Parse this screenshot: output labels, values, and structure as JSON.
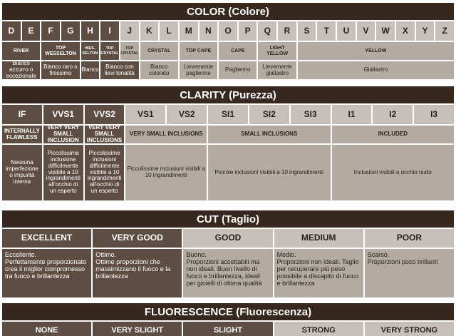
{
  "palette": {
    "title_bg": "#36281e",
    "dark_cell_bg": "#5e4d42",
    "light_cell_bg": "#c7bfb9",
    "tan_cell_bg": "#b3aaa2",
    "text_on_dark": "#ffffff",
    "text_on_light": "#262220"
  },
  "color_section": {
    "title": "COLOR (Colore)",
    "letters": [
      {
        "label": "D",
        "dark": true
      },
      {
        "label": "E",
        "dark": true
      },
      {
        "label": "F",
        "dark": true
      },
      {
        "label": "G",
        "dark": true
      },
      {
        "label": "H",
        "dark": true
      },
      {
        "label": "I",
        "dark": true
      },
      {
        "label": "J"
      },
      {
        "label": "K"
      },
      {
        "label": "L"
      },
      {
        "label": "M"
      },
      {
        "label": "N"
      },
      {
        "label": "O"
      },
      {
        "label": "P"
      },
      {
        "label": "Q"
      },
      {
        "label": "R"
      },
      {
        "label": "S"
      },
      {
        "label": "T"
      },
      {
        "label": "U"
      },
      {
        "label": "V"
      },
      {
        "label": "W"
      },
      {
        "label": "X"
      },
      {
        "label": "Y"
      },
      {
        "label": "Z"
      }
    ],
    "categories": [
      {
        "label": "RIVER",
        "span": 2,
        "dark": true
      },
      {
        "label": "TOP WESSELTON",
        "span": 2,
        "dark": true
      },
      {
        "label": "WES- SELTON",
        "span": 1,
        "dark": true,
        "small": true
      },
      {
        "label": "TOP CRYSTAL",
        "span": 1,
        "dark": true,
        "small": true
      },
      {
        "label": "TOP CRYSTAL",
        "span": 1,
        "small": true
      },
      {
        "label": "CRYSTAL",
        "span": 2
      },
      {
        "label": "TOP CAPE",
        "span": 2
      },
      {
        "label": "CAPE",
        "span": 2
      },
      {
        "label": "LIGHT YELLOW",
        "span": 2
      },
      {
        "label": "YELLOW",
        "span": 8
      }
    ],
    "descriptions": [
      {
        "label": "Bianco azzurro o eccezionale",
        "span": 2,
        "dark": true
      },
      {
        "label": "Bianco raro o finissimo",
        "span": 2,
        "dark": true
      },
      {
        "label": "Bianco",
        "span": 1,
        "dark": true
      },
      {
        "label": "Bianco con lievi tonalità",
        "span": 2,
        "dark": true
      },
      {
        "label": "Bianco colorato",
        "span": 2
      },
      {
        "label": "Lievemente paglierino",
        "span": 2
      },
      {
        "label": "Paglierino",
        "span": 2
      },
      {
        "label": "Lievemente giallastro",
        "span": 2
      },
      {
        "label": "Giallastro",
        "span": 8
      }
    ]
  },
  "clarity_section": {
    "title": "CLARITY (Purezza)",
    "grades": [
      {
        "label": "IF",
        "dark": true
      },
      {
        "label": "VVS1",
        "dark": true
      },
      {
        "label": "VVS2",
        "dark": true
      },
      {
        "label": "VS1"
      },
      {
        "label": "VS2"
      },
      {
        "label": "SI1"
      },
      {
        "label": "SI2"
      },
      {
        "label": "SI3"
      },
      {
        "label": "I1"
      },
      {
        "label": "I2"
      },
      {
        "label": "I3"
      }
    ],
    "groups": [
      {
        "label": "INTERNALLY FLAWLESS",
        "span": 1,
        "dark": true
      },
      {
        "label": "VERY VERY SMALL INCLUSION",
        "span": 1,
        "dark": true
      },
      {
        "label": "VERY VERY SMALL INCLUSIONS",
        "span": 1,
        "dark": true
      },
      {
        "label": "VERY SMALL INCLUSIONS",
        "span": 2
      },
      {
        "label": "SMALL INCLUSIONS",
        "span": 3
      },
      {
        "label": "INCLUDED",
        "span": 3
      }
    ],
    "descriptions": [
      {
        "label": "Nessuna imperfezione o impurità interna",
        "span": 1,
        "dark": true
      },
      {
        "label": "Piccolissima inclusione difficilmente visibile a 10 ingrandimenti all'occhio di un esperto",
        "span": 1,
        "dark": true
      },
      {
        "label": "Piccolissime inclusioni difficilmente visibile a 10 ingrandimenti all'occhio di un esperto",
        "span": 1,
        "dark": true
      },
      {
        "label": "Piccolissime inclusioni visibili a 10 ingrandimenti",
        "span": 2
      },
      {
        "label": "Piccole inclusioni visibili a 10 ingrandimenti",
        "span": 3
      },
      {
        "label": "Inclusioni visibili a occhio nudo",
        "span": 3
      }
    ]
  },
  "cut_section": {
    "title": "CUT (Taglio)",
    "grades": [
      {
        "label": "EXCELLENT",
        "dark": true
      },
      {
        "label": "VERY GOOD",
        "dark": true
      },
      {
        "label": "GOOD"
      },
      {
        "label": "MEDIUM"
      },
      {
        "label": "POOR"
      }
    ],
    "descriptions": [
      {
        "label": "Eccellente.\nPerfettamente proporzionato crea il miglior compromesso tra fuoco e brillantezza",
        "dark": true
      },
      {
        "label": "Ottimo.\nOttime proporzioni che massimizzano il fuoco e la brillantezza",
        "dark": true
      },
      {
        "label": "Buono.\nProporzioni accettabili ma non ideali. Buon livello di fuoco e brillantezza, ideali per gioielli di ottima qualità"
      },
      {
        "label": "Medio.\nProporzioni non ideali. Taglio per recuperare più peso possibile a discapito di fuoco e brillantezza"
      },
      {
        "label": "Scarso.\nProporzioni poco brillanti"
      }
    ]
  },
  "fluorescence_section": {
    "title": "FLUORESCENCE (Fluorescenza)",
    "grades": [
      {
        "label": "NONE",
        "dark": true
      },
      {
        "label": "VERY SLIGHT",
        "dark": true
      },
      {
        "label": "SLIGHT",
        "dark": true
      },
      {
        "label": "STRONG"
      },
      {
        "label": "VERY STRONG"
      }
    ]
  }
}
